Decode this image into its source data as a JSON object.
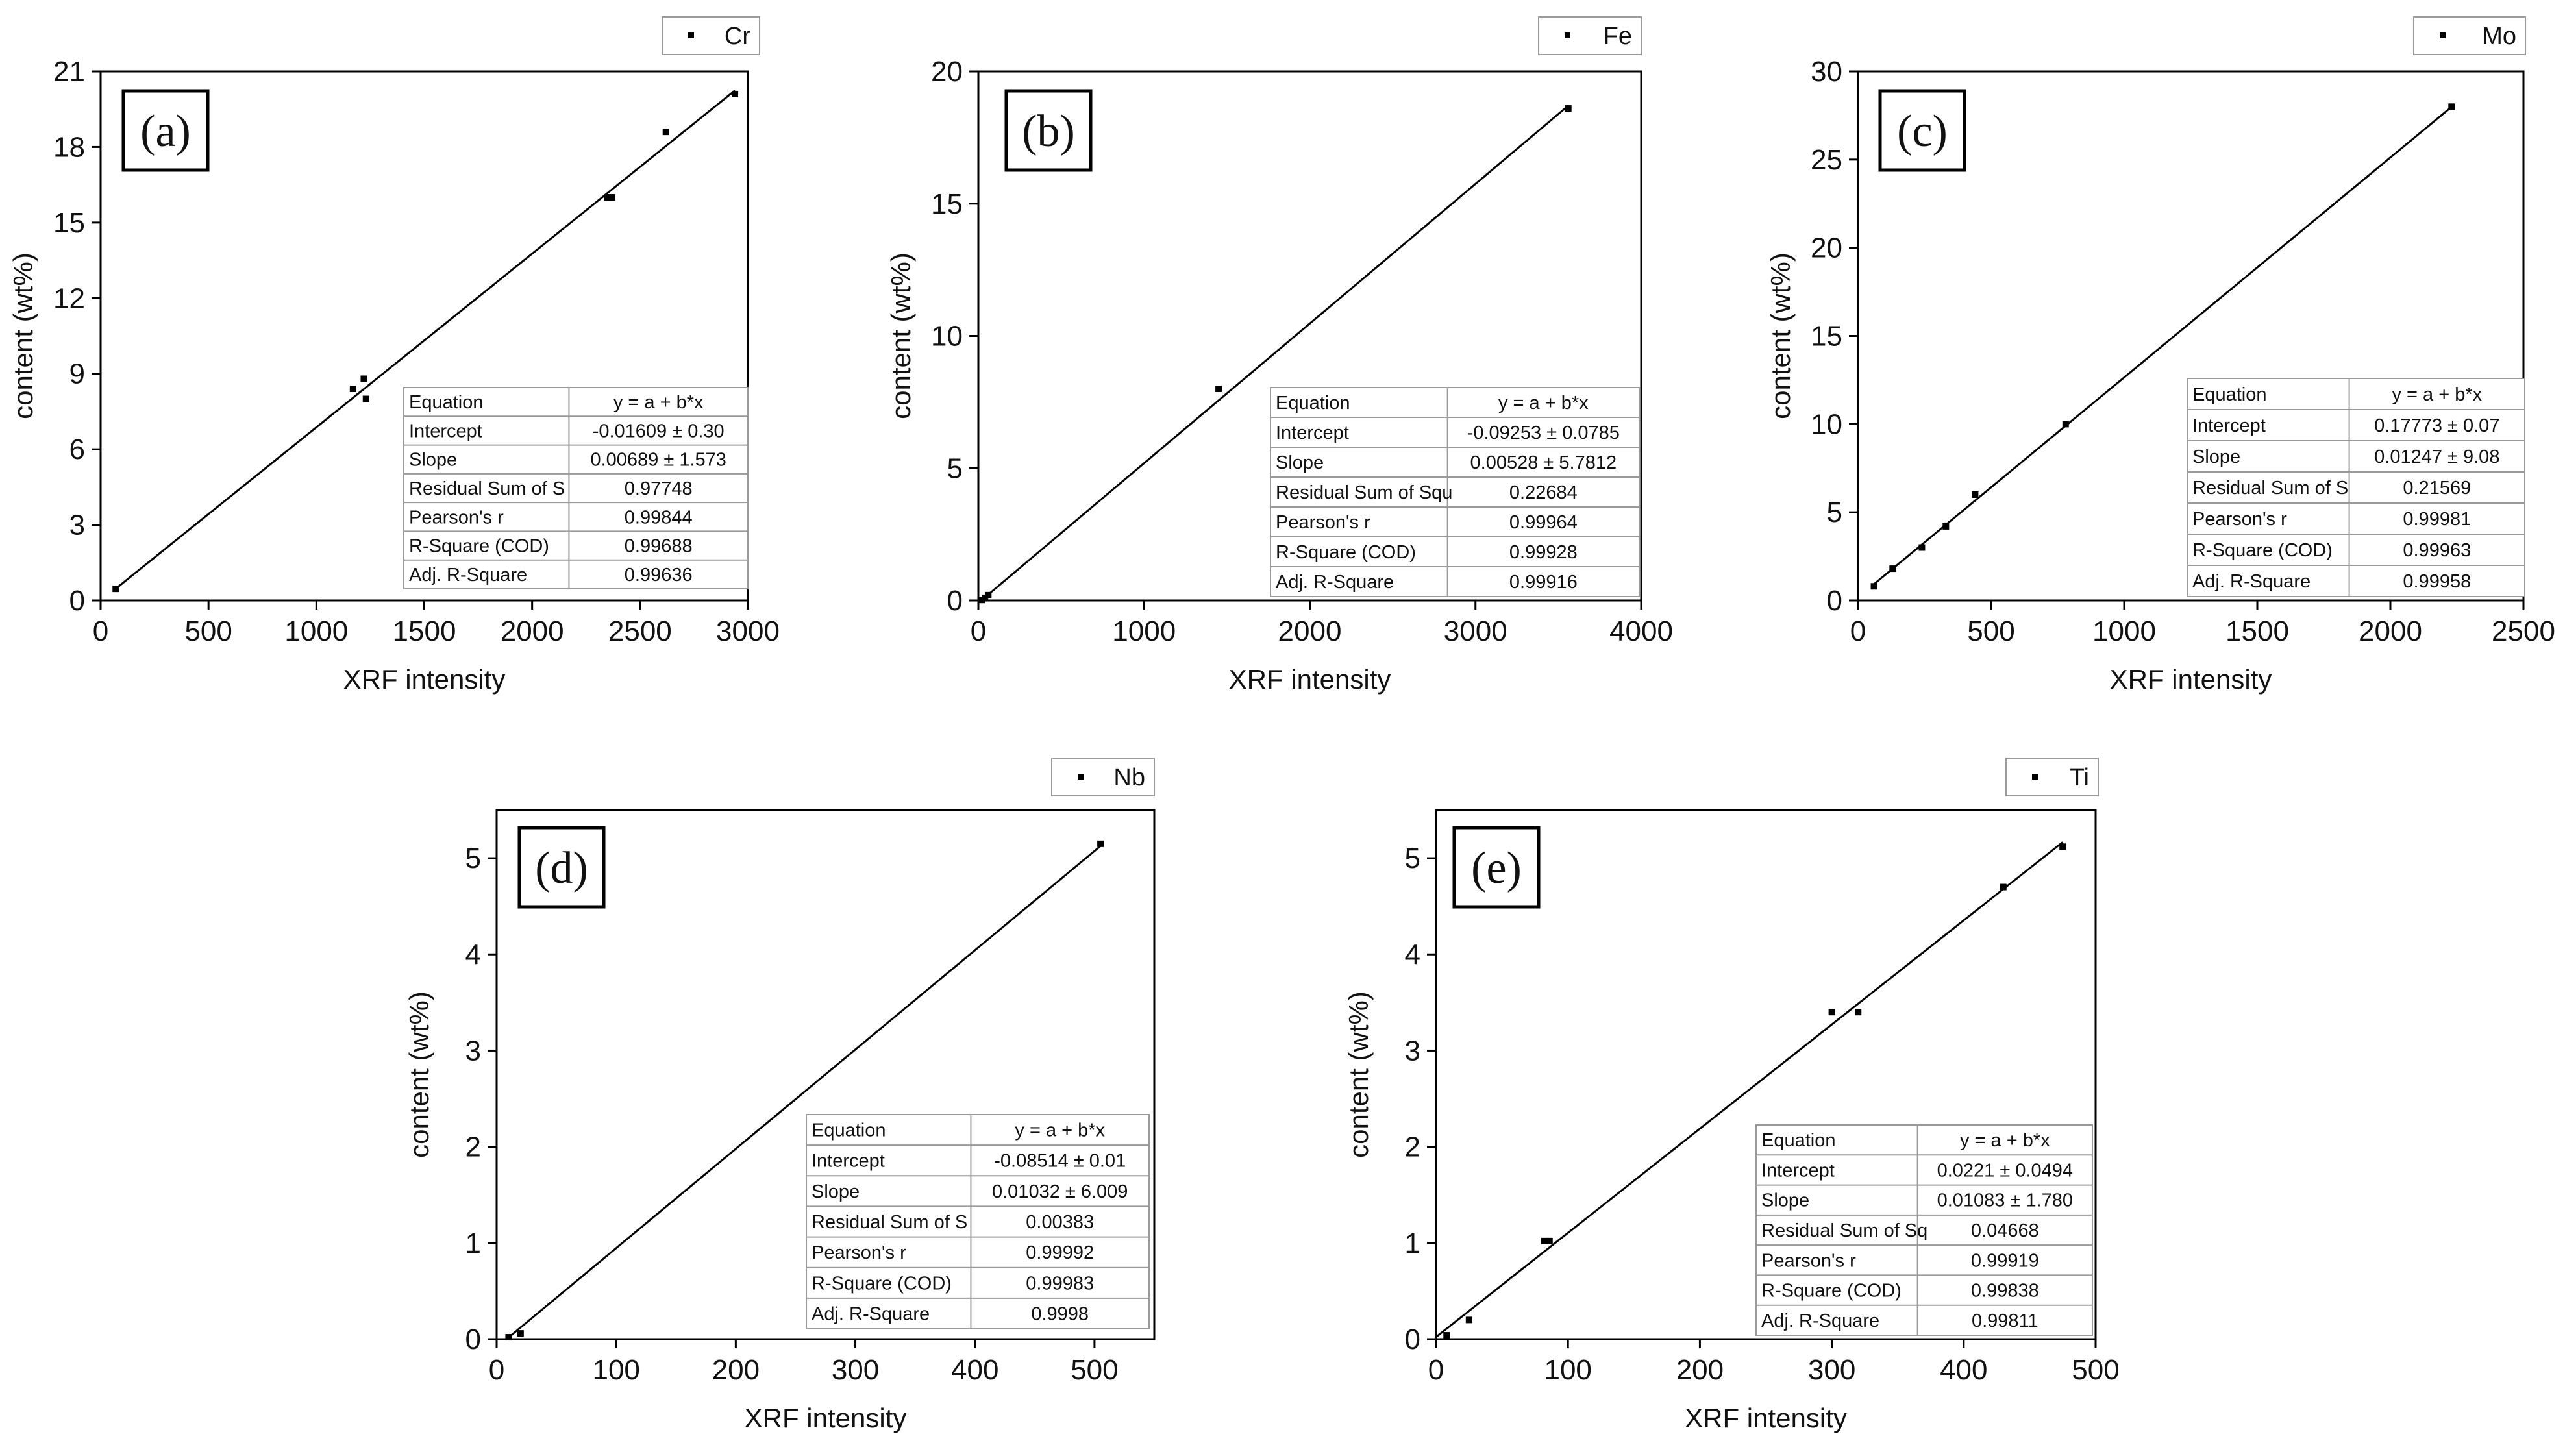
{
  "figure": "XRF calibration curves",
  "colors": {
    "line": "#000000",
    "marker": "#000000",
    "background": "#ffffff"
  },
  "table_labels": [
    "Equation",
    "Intercept",
    "Slope",
    "Residual Sum of S",
    "Pearson's r",
    "R-Square (COD)",
    "Adj. R-Square"
  ],
  "chart_data": [
    {
      "type": "scatter",
      "panel": "(a)",
      "series_name": "Cr",
      "xlabel": "XRF intensity",
      "ylabel": "content (wt%)",
      "xlim": [
        0,
        3000
      ],
      "ylim": [
        0,
        21
      ],
      "xticks": [
        0,
        500,
        1000,
        1500,
        2000,
        2500,
        3000
      ],
      "yticks": [
        0,
        3,
        6,
        9,
        12,
        15,
        18,
        21
      ],
      "points": [
        [
          70,
          0.46
        ],
        [
          1170,
          8.4
        ],
        [
          1220,
          8.8
        ],
        [
          1230,
          8.0
        ],
        [
          2350,
          16.0
        ],
        [
          2370,
          16.0
        ],
        [
          2620,
          18.6
        ],
        [
          2940,
          20.1
        ]
      ],
      "fit": {
        "intercept": -0.01609,
        "slope": 0.00689,
        "x_range": [
          70,
          2940
        ]
      },
      "table": {
        "labels": [
          "Equation",
          "Intercept",
          "Slope",
          "Residual Sum of S",
          "Pearson's r",
          "R-Square (COD)",
          "Adj. R-Square"
        ],
        "values": [
          "y = a + b*x",
          "-0.01609 ± 0.30",
          "0.00689 ± 1.573",
          "0.97748",
          "0.99844",
          "0.99688",
          "0.99636"
        ]
      }
    },
    {
      "type": "scatter",
      "panel": "(b)",
      "series_name": "Fe",
      "xlabel": "XRF intensity",
      "ylabel": "content (wt%)",
      "xlim": [
        0,
        4000
      ],
      "ylim": [
        0,
        20
      ],
      "xticks": [
        0,
        1000,
        2000,
        3000,
        4000
      ],
      "yticks": [
        0,
        5,
        10,
        15,
        20
      ],
      "points": [
        [
          20,
          0.02
        ],
        [
          40,
          0.1
        ],
        [
          60,
          0.2
        ],
        [
          1450,
          8.0
        ],
        [
          3560,
          18.6
        ]
      ],
      "fit": {
        "intercept": -0.09253,
        "slope": 0.00528,
        "x_range": [
          20,
          3560
        ]
      },
      "table": {
        "labels": [
          "Equation",
          "Intercept",
          "Slope",
          "Residual Sum of Squ",
          "Pearson's r",
          "R-Square (COD)",
          "Adj. R-Square"
        ],
        "values": [
          "y = a + b*x",
          "-0.09253 ± 0.0785",
          "0.00528 ± 5.7812",
          "0.22684",
          "0.99964",
          "0.99928",
          "0.99916"
        ]
      }
    },
    {
      "type": "scatter",
      "panel": "(c)",
      "series_name": "Mo",
      "xlabel": "XRF intensity",
      "ylabel": "content (wt%)",
      "xlim": [
        0,
        2500
      ],
      "ylim": [
        0,
        30
      ],
      "xticks": [
        0,
        500,
        1000,
        1500,
        2000,
        2500
      ],
      "yticks": [
        0,
        5,
        10,
        15,
        20,
        25,
        30
      ],
      "points": [
        [
          60,
          0.8
        ],
        [
          130,
          1.8
        ],
        [
          240,
          3.0
        ],
        [
          330,
          4.2
        ],
        [
          440,
          6.0
        ],
        [
          780,
          10.0
        ],
        [
          2230,
          28.0
        ]
      ],
      "fit": {
        "intercept": 0.17773,
        "slope": 0.01247,
        "x_range": [
          50,
          2230
        ]
      },
      "table": {
        "labels": [
          "Equation",
          "Intercept",
          "Slope",
          "Residual Sum of S",
          "Pearson's r",
          "R-Square (COD)",
          "Adj. R-Square"
        ],
        "values": [
          "y = a + b*x",
          "0.17773 ± 0.07",
          "0.01247 ± 9.08",
          "0.21569",
          "0.99981",
          "0.99963",
          "0.99958"
        ]
      }
    },
    {
      "type": "scatter",
      "panel": "(d)",
      "series_name": "Nb",
      "xlabel": "XRF intensity",
      "ylabel": "content (wt%)",
      "xlim": [
        0,
        550
      ],
      "ylim": [
        0,
        5.5
      ],
      "xticks": [
        0,
        100,
        200,
        300,
        400,
        500
      ],
      "yticks": [
        0,
        1,
        2,
        3,
        4,
        5
      ],
      "points": [
        [
          10,
          0.02
        ],
        [
          20,
          0.06
        ],
        [
          505,
          5.15
        ]
      ],
      "fit": {
        "intercept": -0.08514,
        "slope": 0.01032,
        "x_range": [
          8,
          505
        ]
      },
      "table": {
        "labels": [
          "Equation",
          "Intercept",
          "Slope",
          "Residual Sum of S",
          "Pearson's r",
          "R-Square (COD)",
          "Adj. R-Square"
        ],
        "values": [
          "y = a + b*x",
          "-0.08514 ± 0.01",
          "0.01032 ± 6.009",
          "0.00383",
          "0.99992",
          "0.99983",
          "0.9998"
        ]
      }
    },
    {
      "type": "scatter",
      "panel": "(e)",
      "series_name": "Ti",
      "xlabel": "XRF intensity",
      "ylabel": "content (wt%)",
      "xlim": [
        0,
        500
      ],
      "ylim": [
        0,
        5.5
      ],
      "xticks": [
        0,
        100,
        200,
        300,
        400,
        500
      ],
      "yticks": [
        0,
        1,
        2,
        3,
        4,
        5
      ],
      "points": [
        [
          8,
          0.04
        ],
        [
          25,
          0.2
        ],
        [
          82,
          1.02
        ],
        [
          86,
          1.02
        ],
        [
          300,
          3.4
        ],
        [
          320,
          3.4
        ],
        [
          430,
          4.7
        ],
        [
          475,
          5.12
        ]
      ],
      "fit": {
        "intercept": 0.0221,
        "slope": 0.01083,
        "x_range": [
          0,
          475
        ]
      },
      "table": {
        "labels": [
          "Equation",
          "Intercept",
          "Slope",
          "Residual Sum of Sq",
          "Pearson's r",
          "R-Square (COD)",
          "Adj. R-Square"
        ],
        "values": [
          "y = a + b*x",
          "0.0221 ± 0.0494",
          "0.01083 ± 1.780",
          "0.04668",
          "0.99919",
          "0.99838",
          "0.99811"
        ]
      }
    }
  ]
}
